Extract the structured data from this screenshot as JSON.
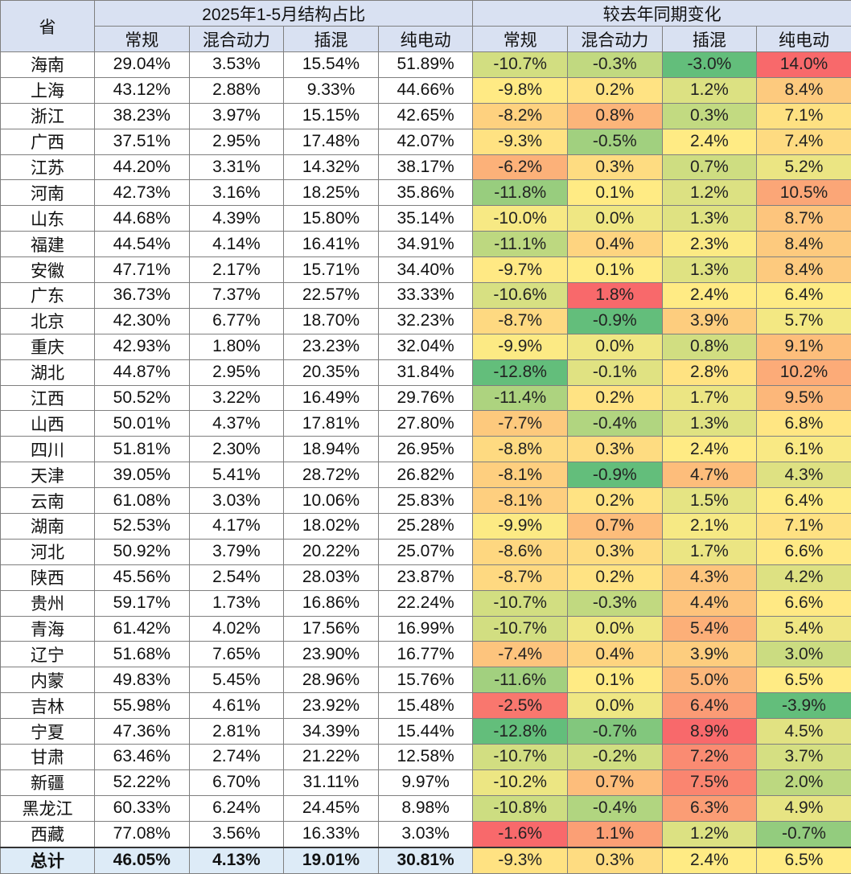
{
  "chart_data": {
    "type": "table",
    "header": {
      "province_label": "省",
      "group_share": "2025年1-5月结构占比",
      "group_change": "较去年同期变化",
      "columns": [
        "常规",
        "混合动力",
        "插混",
        "纯电动"
      ]
    },
    "color_scale": {
      "low": "#63BE7B",
      "mid": "#FFEB84",
      "high": "#F8696B"
    },
    "rows": [
      {
        "province": "海南",
        "share": [
          "29.04%",
          "3.53%",
          "15.54%",
          "51.89%"
        ],
        "change": [
          -10.7,
          -0.3,
          -3.0,
          14.0
        ]
      },
      {
        "province": "上海",
        "share": [
          "43.12%",
          "2.88%",
          "9.33%",
          "44.66%"
        ],
        "change": [
          -9.8,
          0.2,
          1.2,
          8.4
        ]
      },
      {
        "province": "浙江",
        "share": [
          "38.23%",
          "3.97%",
          "15.15%",
          "42.65%"
        ],
        "change": [
          -8.2,
          0.8,
          0.3,
          7.1
        ]
      },
      {
        "province": "广西",
        "share": [
          "37.51%",
          "2.95%",
          "17.48%",
          "42.07%"
        ],
        "change": [
          -9.3,
          -0.5,
          2.4,
          7.4
        ]
      },
      {
        "province": "江苏",
        "share": [
          "44.20%",
          "3.31%",
          "14.32%",
          "38.17%"
        ],
        "change": [
          -6.2,
          0.3,
          0.7,
          5.2
        ]
      },
      {
        "province": "河南",
        "share": [
          "42.73%",
          "3.16%",
          "18.25%",
          "35.86%"
        ],
        "change": [
          -11.8,
          0.1,
          1.2,
          10.5
        ]
      },
      {
        "province": "山东",
        "share": [
          "44.68%",
          "4.39%",
          "15.80%",
          "35.14%"
        ],
        "change": [
          -10.0,
          0.0,
          1.3,
          8.7
        ]
      },
      {
        "province": "福建",
        "share": [
          "44.54%",
          "4.14%",
          "16.41%",
          "34.91%"
        ],
        "change": [
          -11.1,
          0.4,
          2.3,
          8.4
        ]
      },
      {
        "province": "安徽",
        "share": [
          "47.71%",
          "2.17%",
          "15.71%",
          "34.40%"
        ],
        "change": [
          -9.7,
          0.1,
          1.3,
          8.4
        ]
      },
      {
        "province": "广东",
        "share": [
          "36.73%",
          "7.37%",
          "22.57%",
          "33.33%"
        ],
        "change": [
          -10.6,
          1.8,
          2.4,
          6.4
        ]
      },
      {
        "province": "北京",
        "share": [
          "42.30%",
          "6.77%",
          "18.70%",
          "32.23%"
        ],
        "change": [
          -8.7,
          -0.9,
          3.9,
          5.7
        ]
      },
      {
        "province": "重庆",
        "share": [
          "42.93%",
          "1.80%",
          "23.23%",
          "32.04%"
        ],
        "change": [
          -9.9,
          0.0,
          0.8,
          9.1
        ]
      },
      {
        "province": "湖北",
        "share": [
          "44.87%",
          "2.95%",
          "20.35%",
          "31.84%"
        ],
        "change": [
          -12.8,
          -0.1,
          2.8,
          10.2
        ]
      },
      {
        "province": "江西",
        "share": [
          "50.52%",
          "3.22%",
          "16.49%",
          "29.76%"
        ],
        "change": [
          -11.4,
          0.2,
          1.7,
          9.5
        ]
      },
      {
        "province": "山西",
        "share": [
          "50.01%",
          "4.37%",
          "17.81%",
          "27.80%"
        ],
        "change": [
          -7.7,
          -0.4,
          1.3,
          6.8
        ]
      },
      {
        "province": "四川",
        "share": [
          "51.81%",
          "2.30%",
          "18.94%",
          "26.95%"
        ],
        "change": [
          -8.8,
          0.3,
          2.4,
          6.1
        ]
      },
      {
        "province": "天津",
        "share": [
          "39.05%",
          "5.41%",
          "28.72%",
          "26.82%"
        ],
        "change": [
          -8.1,
          -0.9,
          4.7,
          4.3
        ]
      },
      {
        "province": "云南",
        "share": [
          "61.08%",
          "3.03%",
          "10.06%",
          "25.83%"
        ],
        "change": [
          -8.1,
          0.2,
          1.5,
          6.4
        ]
      },
      {
        "province": "湖南",
        "share": [
          "52.53%",
          "4.17%",
          "18.02%",
          "25.28%"
        ],
        "change": [
          -9.9,
          0.7,
          2.1,
          7.1
        ]
      },
      {
        "province": "河北",
        "share": [
          "50.92%",
          "3.79%",
          "20.22%",
          "25.07%"
        ],
        "change": [
          -8.6,
          0.3,
          1.7,
          6.6
        ]
      },
      {
        "province": "陕西",
        "share": [
          "45.56%",
          "2.54%",
          "28.03%",
          "23.87%"
        ],
        "change": [
          -8.7,
          0.2,
          4.3,
          4.2
        ]
      },
      {
        "province": "贵州",
        "share": [
          "59.17%",
          "1.73%",
          "16.86%",
          "22.24%"
        ],
        "change": [
          -10.7,
          -0.3,
          4.4,
          6.6
        ]
      },
      {
        "province": "青海",
        "share": [
          "61.42%",
          "4.02%",
          "17.56%",
          "16.99%"
        ],
        "change": [
          -10.7,
          0.0,
          5.4,
          5.4
        ]
      },
      {
        "province": "辽宁",
        "share": [
          "51.68%",
          "7.65%",
          "23.90%",
          "16.77%"
        ],
        "change": [
          -7.4,
          0.4,
          3.9,
          3.0
        ]
      },
      {
        "province": "内蒙",
        "share": [
          "49.83%",
          "5.45%",
          "28.96%",
          "15.76%"
        ],
        "change": [
          -11.6,
          0.1,
          5.0,
          6.5
        ]
      },
      {
        "province": "吉林",
        "share": [
          "55.98%",
          "4.61%",
          "23.92%",
          "15.48%"
        ],
        "change": [
          -2.5,
          0.0,
          6.4,
          -3.9
        ]
      },
      {
        "province": "宁夏",
        "share": [
          "47.36%",
          "2.81%",
          "34.39%",
          "15.44%"
        ],
        "change": [
          -12.8,
          -0.7,
          8.9,
          4.5
        ]
      },
      {
        "province": "甘肃",
        "share": [
          "63.46%",
          "2.74%",
          "21.22%",
          "12.58%"
        ],
        "change": [
          -10.7,
          -0.2,
          7.2,
          3.7
        ]
      },
      {
        "province": "新疆",
        "share": [
          "52.22%",
          "6.70%",
          "31.11%",
          "9.97%"
        ],
        "change": [
          -10.2,
          0.7,
          7.5,
          2.0
        ]
      },
      {
        "province": "黑龙江",
        "share": [
          "60.33%",
          "6.24%",
          "24.45%",
          "8.98%"
        ],
        "change": [
          -10.8,
          -0.4,
          6.3,
          4.9
        ]
      },
      {
        "province": "西藏",
        "share": [
          "77.08%",
          "3.56%",
          "16.33%",
          "3.03%"
        ],
        "change": [
          -1.6,
          1.1,
          1.2,
          -0.7
        ]
      }
    ],
    "total": {
      "province": "总计",
      "share": [
        "46.05%",
        "4.13%",
        "19.01%",
        "30.81%"
      ],
      "change": [
        -9.3,
        0.3,
        2.4,
        6.5
      ]
    }
  }
}
